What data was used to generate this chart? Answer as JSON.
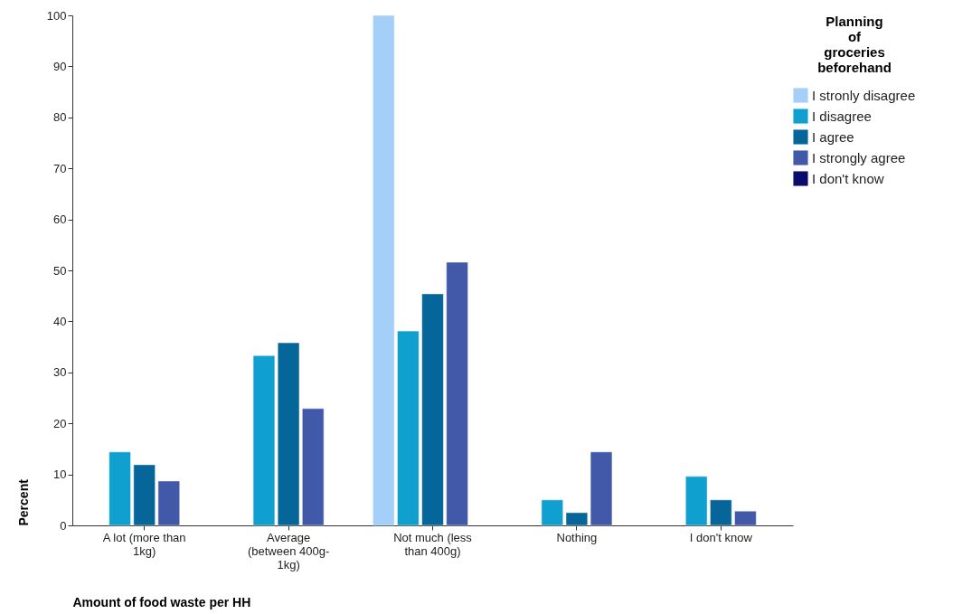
{
  "chart_data": {
    "type": "bar",
    "xlabel": "Amount of food waste per HH",
    "ylabel": "Percent",
    "legend_title": "Planning of groceries beforehand",
    "legend": "top right",
    "categories": [
      "A lot (more than 1kg)",
      "Average (between 400g-1kg)",
      "Not much (less than 400g)",
      "Nothing",
      "I don't know"
    ],
    "series": [
      {
        "name": "I stronly disagree",
        "color": "#a3cff9",
        "values": [
          null,
          null,
          100,
          null,
          null
        ]
      },
      {
        "name": "I disagree",
        "color": "#10a0d0",
        "values": [
          14.4,
          33.3,
          38.1,
          5.0,
          9.6
        ]
      },
      {
        "name": "I agree",
        "color": "#06669a",
        "values": [
          11.9,
          35.8,
          45.4,
          2.5,
          5.0
        ]
      },
      {
        "name": "I strongly agree",
        "color": "#4159a8",
        "values": [
          8.7,
          22.9,
          51.6,
          14.4,
          2.8
        ]
      },
      {
        "name": "I don't know",
        "color": "#0c0c6c",
        "values": [
          null,
          null,
          null,
          null,
          null
        ]
      }
    ],
    "ylim": [
      0,
      100
    ],
    "yticks": [
      0,
      10,
      20,
      30,
      40,
      50,
      60,
      70,
      80,
      90,
      100
    ],
    "grid": false
  }
}
